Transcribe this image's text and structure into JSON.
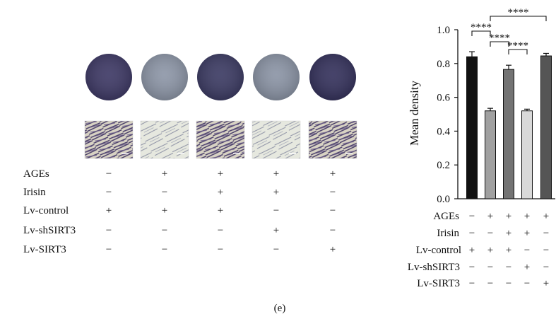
{
  "panel_label": "(e)",
  "conditions": {
    "rows": [
      {
        "label": "AGEs",
        "signs": [
          "−",
          "+",
          "+",
          "+",
          "+"
        ]
      },
      {
        "label": "Irisin",
        "signs": [
          "−",
          "−",
          "+",
          "+",
          "−"
        ]
      },
      {
        "label": "Lv-control",
        "signs": [
          "+",
          "+",
          "+",
          "−",
          "−"
        ]
      },
      {
        "label": "Lv-shSIRT3",
        "signs": [
          "−",
          "−",
          "−",
          "+",
          "−"
        ]
      },
      {
        "label": "Lv-SIRT3",
        "signs": [
          "−",
          "−",
          "−",
          "−",
          "+"
        ]
      }
    ]
  },
  "images": {
    "well_colors": [
      "#3f3a66",
      "#8e97a8",
      "#3d3c64",
      "#8c95a6",
      "#36335d"
    ],
    "cell_stain": [
      "dense",
      "sparse",
      "dense",
      "sparse",
      "dense"
    ]
  },
  "chart_data": {
    "type": "bar",
    "ylabel": "Mean density",
    "ylim": [
      0.0,
      1.0
    ],
    "yticks": [
      "0.0",
      "0.2",
      "0.4",
      "0.6",
      "0.8",
      "1.0"
    ],
    "values": [
      0.84,
      0.52,
      0.765,
      0.52,
      0.845
    ],
    "errors": [
      0.03,
      0.015,
      0.025,
      0.01,
      0.015
    ],
    "bar_colors": [
      "#111111",
      "#a0a0a0",
      "#737373",
      "#d9d9d9",
      "#555555"
    ],
    "condition_rows": [
      {
        "label": "AGEs",
        "signs": [
          "−",
          "+",
          "+",
          "+",
          "+"
        ]
      },
      {
        "label": "Irisin",
        "signs": [
          "−",
          "−",
          "+",
          "+",
          "−"
        ]
      },
      {
        "label": "Lv-control",
        "signs": [
          "+",
          "+",
          "+",
          "−",
          "−"
        ]
      },
      {
        "label": "Lv-shSIRT3",
        "signs": [
          "−",
          "−",
          "−",
          "+",
          "−"
        ]
      },
      {
        "label": "Lv-SIRT3",
        "signs": [
          "−",
          "−",
          "−",
          "−",
          "+"
        ]
      }
    ],
    "significance": [
      {
        "from": 0,
        "to": 1,
        "label": "****"
      },
      {
        "from": 1,
        "to": 2,
        "label": "****"
      },
      {
        "from": 2,
        "to": 3,
        "label": "****"
      },
      {
        "from": 1,
        "to": 4,
        "label": "****"
      }
    ]
  }
}
